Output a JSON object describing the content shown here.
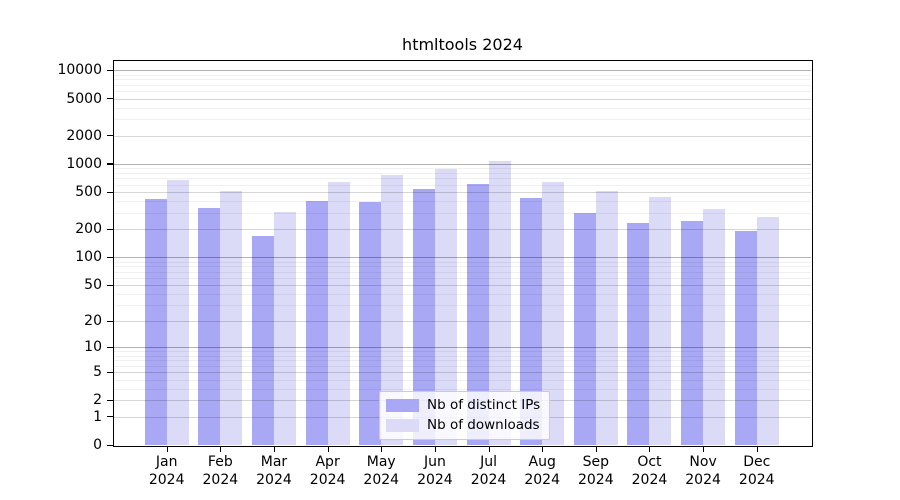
{
  "chart_data": {
    "type": "bar",
    "title": "htmltools 2024",
    "x": {
      "months": [
        "Jan",
        "Feb",
        "Mar",
        "Apr",
        "May",
        "Jun",
        "Jul",
        "Aug",
        "Sep",
        "Oct",
        "Nov",
        "Dec"
      ],
      "year": "2024"
    },
    "categories": [
      "Jan 2024",
      "Feb 2024",
      "Mar 2024",
      "Apr 2024",
      "May 2024",
      "Jun 2024",
      "Jul 2024",
      "Aug 2024",
      "Sep 2024",
      "Oct 2024",
      "Nov 2024",
      "Dec 2024"
    ],
    "series": [
      {
        "name": "Nb of distinct IPs",
        "color": "#a8a8f5",
        "values": [
          425,
          340,
          170,
          400,
          390,
          535,
          605,
          430,
          300,
          235,
          245,
          192
        ]
      },
      {
        "name": "Nb of downloads",
        "color": "#dbdbf8",
        "values": [
          680,
          520,
          310,
          640,
          765,
          885,
          1075,
          640,
          510,
          445,
          330,
          273
        ]
      }
    ],
    "y_axis": {
      "ticks": [
        10000,
        5000,
        2000,
        1000,
        500,
        200,
        100,
        50,
        20,
        10,
        5,
        2,
        1,
        0
      ],
      "tick_labels": [
        "10000",
        "5000",
        "2000",
        "1000",
        "500",
        "200",
        "100",
        "50",
        "20",
        "10",
        "5",
        "2",
        "1",
        "0"
      ],
      "scale": "log10(value+1)",
      "ylim": [
        0,
        12500
      ],
      "grid": true
    },
    "legend_position": "inside lower center"
  }
}
